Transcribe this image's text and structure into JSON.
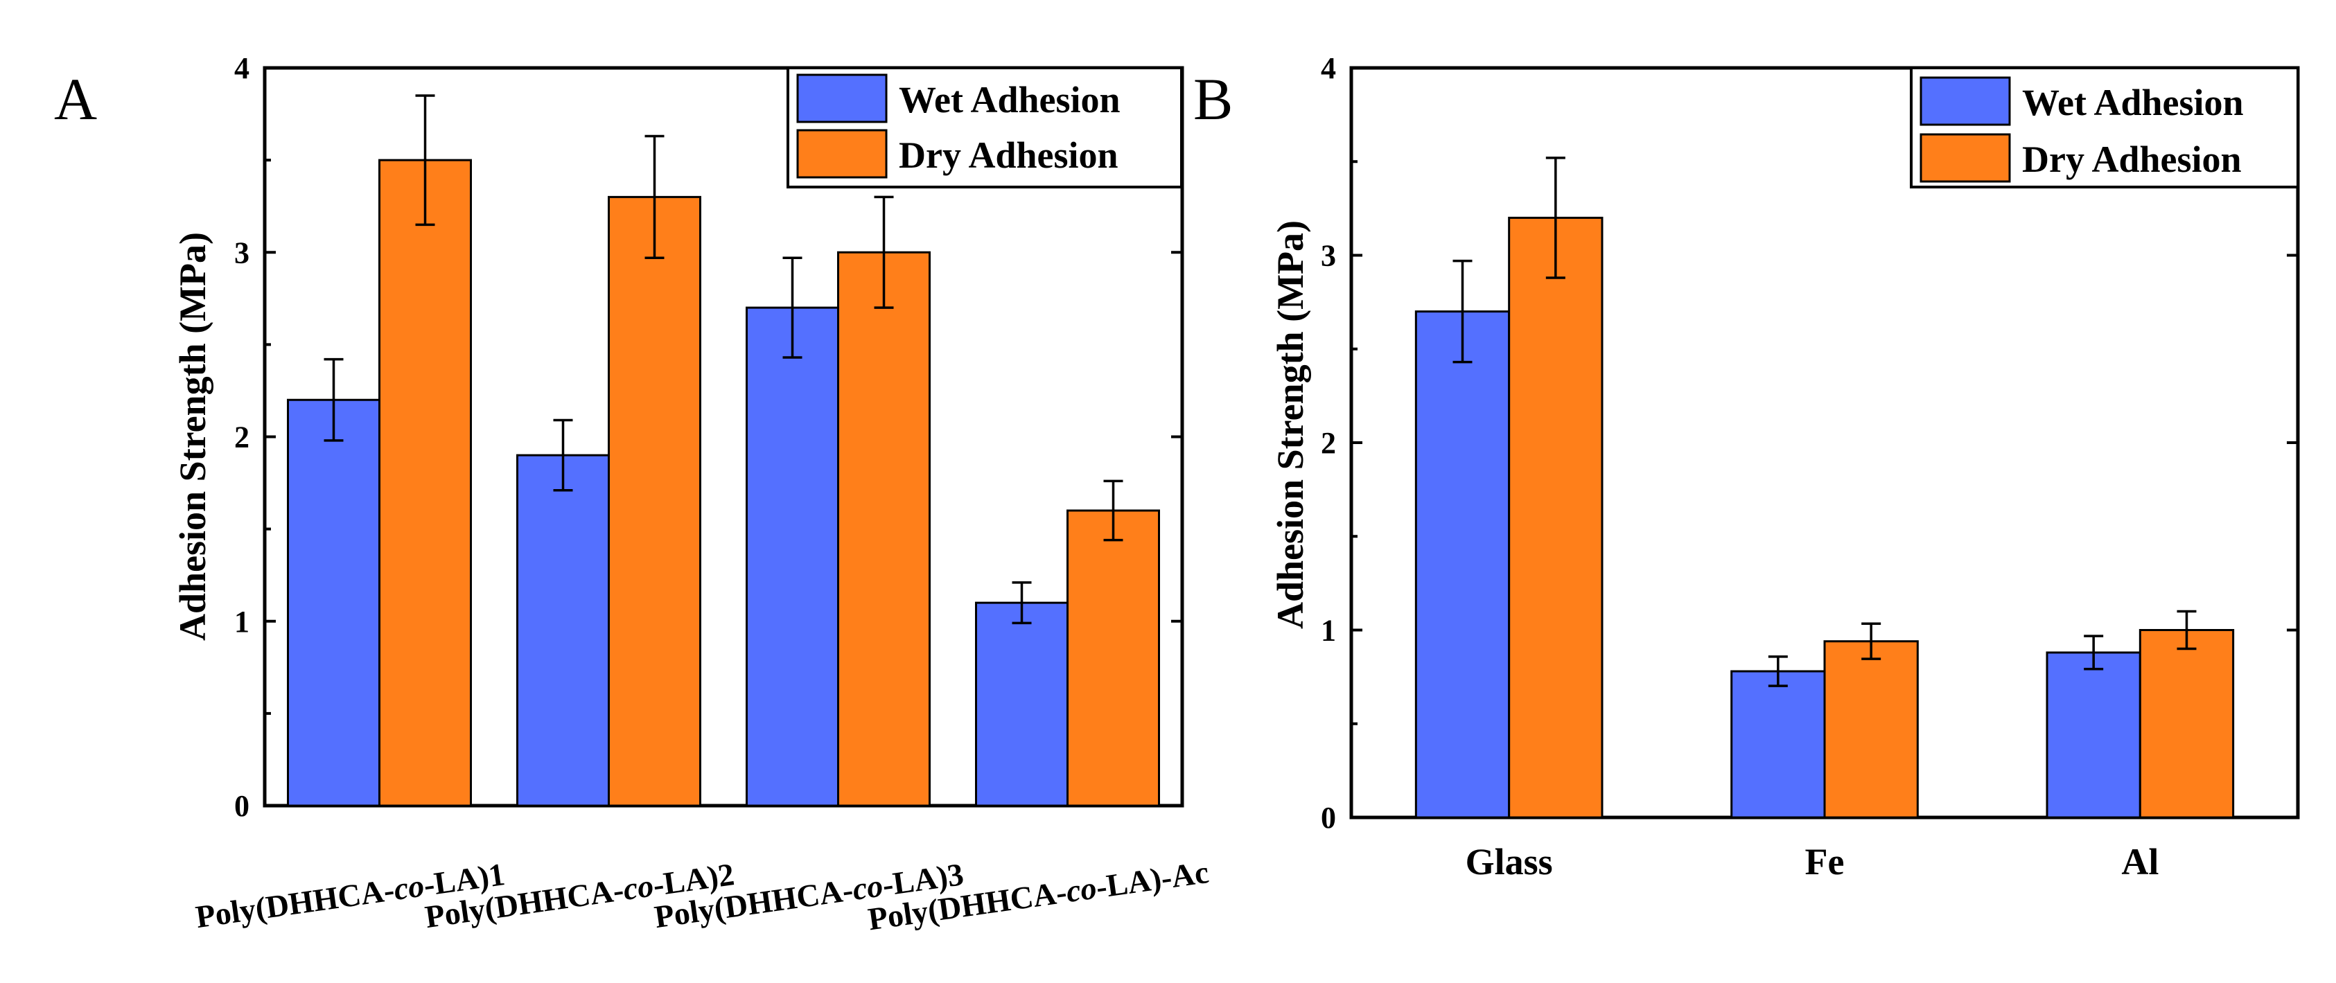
{
  "chart_data": [
    {
      "type": "bar",
      "panel_label": "A",
      "ylabel": "Adhesion Strength (MPa)",
      "ylim": [
        0,
        4
      ],
      "yticks": [
        0,
        1,
        2,
        3,
        4
      ],
      "categories": [
        [
          "Poly(DHHCA-",
          "co",
          "-LA)1"
        ],
        [
          "Poly(DHHCA-",
          "co",
          "-LA)2"
        ],
        [
          "Poly(DHHCA-",
          "co",
          "-LA)3"
        ],
        [
          "Poly(DHHCA-",
          "co",
          "-LA)-Ac"
        ]
      ],
      "legend": {
        "position": "top-right"
      },
      "series": [
        {
          "name": "Wet Adhesion",
          "color": "#5470FF",
          "values": [
            2.2,
            1.9,
            2.7,
            1.1
          ],
          "errors": [
            0.22,
            0.19,
            0.27,
            0.11
          ]
        },
        {
          "name": "Dry Adhesion",
          "color": "#FF7F1A",
          "values": [
            3.5,
            3.3,
            3.0,
            1.6
          ],
          "errors": [
            0.35,
            0.33,
            0.3,
            0.16
          ]
        }
      ]
    },
    {
      "type": "bar",
      "panel_label": "B",
      "ylabel": "Adhesion Strength (MPa)",
      "ylim": [
        0,
        4
      ],
      "yticks": [
        0,
        1,
        2,
        3,
        4
      ],
      "categories": [
        "Glass",
        "Fe",
        "Al"
      ],
      "legend": {
        "position": "top-right"
      },
      "series": [
        {
          "name": "Wet Adhesion",
          "color": "#5470FF",
          "values": [
            2.7,
            0.78,
            0.88
          ],
          "errors": [
            0.27,
            0.078,
            0.088
          ]
        },
        {
          "name": "Dry Adhesion",
          "color": "#FF7F1A",
          "values": [
            3.2,
            0.94,
            1.0
          ],
          "errors": [
            0.32,
            0.094,
            0.1
          ]
        }
      ]
    }
  ]
}
